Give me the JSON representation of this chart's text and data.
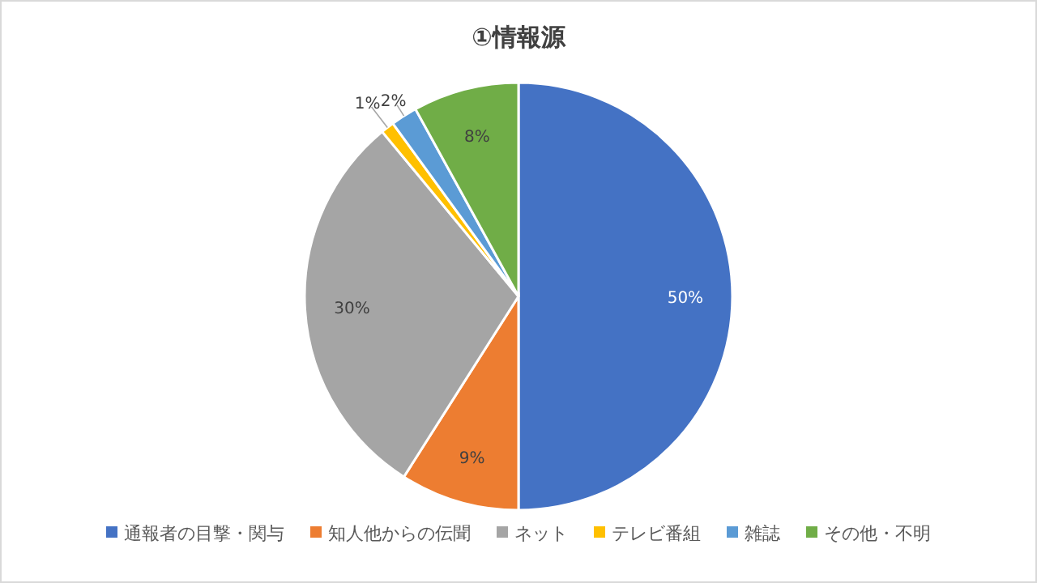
{
  "chart_data": {
    "type": "pie",
    "title": "①情報源",
    "categories": [
      "通報者の目撃・関与",
      "知人他からの伝聞",
      "ネット",
      "テレビ番組",
      "雑誌",
      "その他・不明"
    ],
    "values": [
      50,
      9,
      30,
      1,
      2,
      8
    ],
    "colors": [
      "#4472c4",
      "#ed7d31",
      "#a5a5a5",
      "#ffc000",
      "#5b9bd5",
      "#70ad47"
    ],
    "value_labels": [
      "50%",
      "9%",
      "30%",
      "1%",
      "2%",
      "8%"
    ],
    "legend": "bottom"
  }
}
